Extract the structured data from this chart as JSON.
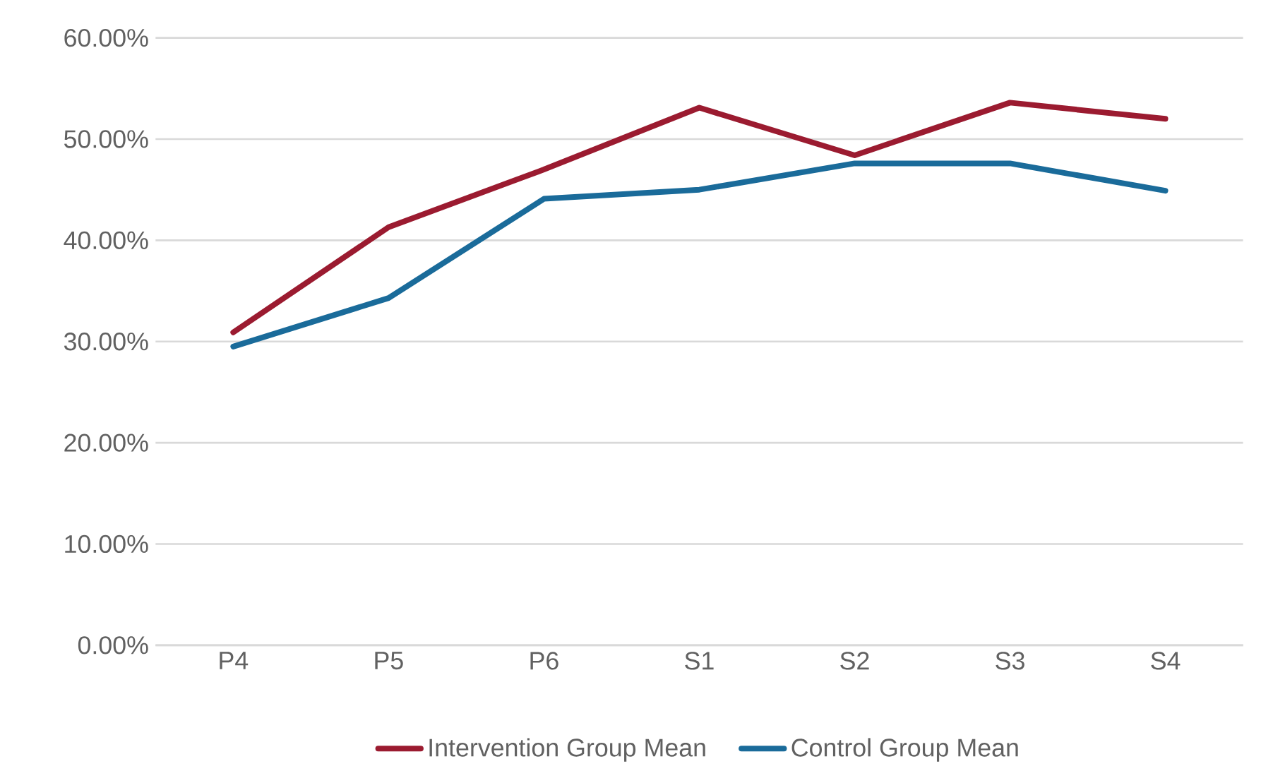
{
  "chart_data": {
    "type": "line",
    "categories": [
      "P4",
      "P5",
      "P6",
      "S1",
      "S2",
      "S3",
      "S4"
    ],
    "series": [
      {
        "name": "Intervention Group Mean",
        "color": "#9b1b30",
        "values": [
          30.9,
          41.3,
          47.0,
          53.1,
          48.4,
          53.6,
          52.0
        ]
      },
      {
        "name": "Control Group Mean",
        "color": "#1a6b9a",
        "values": [
          29.5,
          34.3,
          44.1,
          45.0,
          47.6,
          47.6,
          44.9
        ]
      }
    ],
    "ylim": [
      0,
      60
    ],
    "yticks": [
      {
        "value": 0,
        "label": "0.00%"
      },
      {
        "value": 10,
        "label": "10.00%"
      },
      {
        "value": 20,
        "label": "20.00%"
      },
      {
        "value": 30,
        "label": "30.00%"
      },
      {
        "value": 40,
        "label": "40.00%"
      },
      {
        "value": 50,
        "label": "50.00%"
      },
      {
        "value": 60,
        "label": "60.00%"
      }
    ],
    "grid": "y",
    "legend": "bottom",
    "marker": "none",
    "line_style": "solid"
  }
}
